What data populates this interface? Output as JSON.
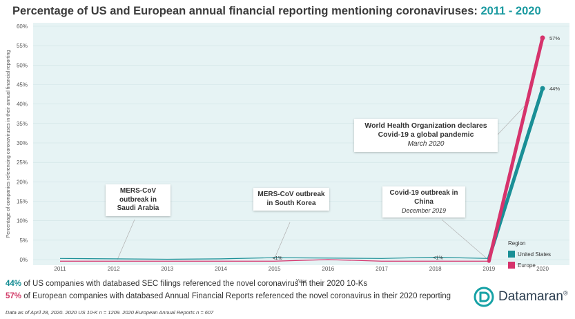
{
  "title": {
    "main": "Percentage of US and European annual financial reporting mentioning coronaviruses:",
    "years": "2011 - 2020"
  },
  "chart_data": {
    "type": "line",
    "x": [
      "2011",
      "2012",
      "2013",
      "2014",
      "2015",
      "2016",
      "2017",
      "2018",
      "2019",
      "2020"
    ],
    "series": [
      {
        "name": "United States",
        "color": "#1a8f96",
        "values": [
          0.3,
          0.2,
          0.1,
          0.2,
          0.5,
          0.4,
          0.3,
          0.6,
          0.3,
          44
        ]
      },
      {
        "name": "Europe",
        "color": "#d6336c",
        "values": [
          -0.4,
          -0.4,
          -0.4,
          -0.4,
          -0.4,
          0.0,
          -0.4,
          -0.4,
          -0.4,
          57
        ]
      }
    ],
    "ylim": [
      -1,
      60
    ],
    "yticks": [
      "0%",
      "5%",
      "10%",
      "15%",
      "20%",
      "25%",
      "30%",
      "35%",
      "40%",
      "45%",
      "50%",
      "55%",
      "60%"
    ],
    "ylabel": "Percentage of companies referencing coronaviruses in their annual financial reporting",
    "xlabel": "Year",
    "legend_title": "Region",
    "data_labels": {
      "us_2020": "44%",
      "eu_2020": "57%",
      "y2015": "<1%",
      "y2018": "<1%"
    },
    "annotations": [
      {
        "title": "MERS-CoV outbreak in Saudi Arabia",
        "sub": ""
      },
      {
        "title": "MERS-CoV outbreak in South Korea",
        "sub": ""
      },
      {
        "title": "Covid-19 outbreak in China",
        "sub": "December 2019"
      },
      {
        "title": "World Health Organization declares Covid-19 a global pandemic",
        "sub": "March 2020"
      }
    ]
  },
  "footer": {
    "us_pct": "44%",
    "us_text": " of US companies with databased SEC filings referenced the novel coronavirus in their 2020 10-Ks",
    "eu_pct": "57%",
    "eu_text": " of European companies with databased Annual Financial Reports referenced the novel coronavirus in their 2020 reporting",
    "note": "Data as of April 28, 2020. 2020 US 10-K n = 1209. 2020 European Annual Reports n = 607"
  },
  "brand": {
    "name": "Datamaran",
    "reg": "®",
    "color": "#17a2a6"
  },
  "colors": {
    "plot_bg": "#e6f3f4",
    "grid": "#cfe3e5"
  }
}
